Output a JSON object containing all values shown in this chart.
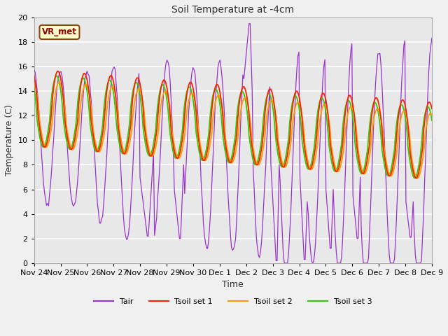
{
  "title": "Soil Temperature at -4cm",
  "xlabel": "Time",
  "ylabel": "Temperature (C)",
  "ylim": [
    0,
    20
  ],
  "xlim": [
    0,
    15
  ],
  "annotation_text": "VR_met",
  "annotation_bg": "#FFFFCC",
  "annotation_border": "#8B4513",
  "fig_bg": "#F0F0F0",
  "plot_bg": "#E8E8E8",
  "xtick_labels": [
    "Nov 24",
    "Nov 25",
    "Nov 26",
    "Nov 27",
    "Nov 28",
    "Nov 29",
    "Nov 30",
    "Dec 1",
    "Dec 2",
    "Dec 3",
    "Dec 4",
    "Dec 5",
    "Dec 6",
    "Dec 7",
    "Dec 8",
    "Dec 9"
  ],
  "colors": {
    "Tair": "#9933CC",
    "Tsoil1": "#FF2200",
    "Tsoil2": "#FF9900",
    "Tsoil3": "#33CC00"
  },
  "legend_labels": [
    "Tair",
    "Tsoil set 1",
    "Tsoil set 2",
    "Tsoil set 3"
  ],
  "yticks": [
    0,
    2,
    4,
    6,
    8,
    10,
    12,
    14,
    16,
    18,
    20
  ]
}
